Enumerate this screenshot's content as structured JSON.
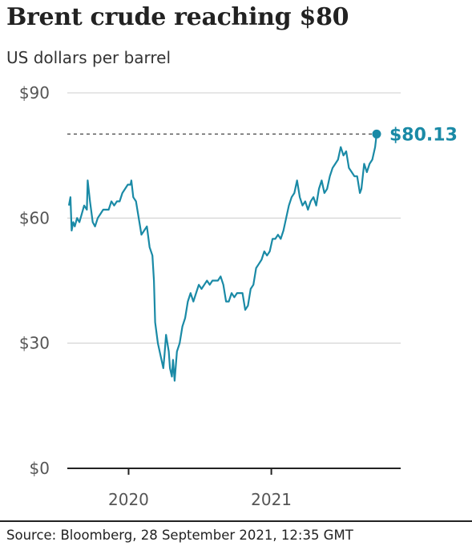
{
  "title": "Brent crude reaching $80",
  "subtitle": "US dollars per barrel",
  "source": "Source: Bloomberg, 28 September 2021, 12:35 GMT",
  "colors": {
    "line": "#1a8aa6",
    "grid": "#cccccc",
    "axis": "#222222",
    "tick_text": "#555555",
    "ref_line": "#333333"
  },
  "chart_data": {
    "type": "line",
    "title": "Brent crude reaching $80",
    "subtitle": "US dollars per barrel",
    "xlabel": "",
    "ylabel": "",
    "ylim": [
      0,
      90
    ],
    "xlim": [
      "2019-08-01",
      "2021-10-08"
    ],
    "y_ticks": [
      {
        "value": 90,
        "label": "$90"
      },
      {
        "value": 60,
        "label": "$60"
      },
      {
        "value": 30,
        "label": "$30"
      },
      {
        "value": 0,
        "label": "$0"
      }
    ],
    "x_ticks": [
      {
        "value": "2020-01-01",
        "label": "2020"
      },
      {
        "value": "2021-01-01",
        "label": "2021"
      }
    ],
    "grid": true,
    "reference_line": {
      "value": 80.13,
      "style": "dashed"
    },
    "end_label": "$80.13",
    "series": [
      {
        "x": [
          "2019-08-01",
          "2019-08-05",
          "2019-08-08",
          "2019-08-12",
          "2019-08-16",
          "2019-08-22",
          "2019-08-28",
          "2019-09-03",
          "2019-09-09",
          "2019-09-16",
          "2019-09-18",
          "2019-09-24",
          "2019-10-01",
          "2019-10-07",
          "2019-10-14",
          "2019-10-21",
          "2019-10-28",
          "2019-11-04",
          "2019-11-11",
          "2019-11-18",
          "2019-11-25",
          "2019-12-02",
          "2019-12-09",
          "2019-12-16",
          "2019-12-23",
          "2019-12-30",
          "2020-01-06",
          "2020-01-08",
          "2020-01-13",
          "2020-01-20",
          "2020-01-27",
          "2020-02-03",
          "2020-02-10",
          "2020-02-17",
          "2020-02-24",
          "2020-03-02",
          "2020-03-06",
          "2020-03-09",
          "2020-03-16",
          "2020-03-23",
          "2020-03-30",
          "2020-04-02",
          "2020-04-06",
          "2020-04-13",
          "2020-04-16",
          "2020-04-21",
          "2020-04-24",
          "2020-04-28",
          "2020-05-04",
          "2020-05-11",
          "2020-05-18",
          "2020-05-25",
          "2020-06-01",
          "2020-06-08",
          "2020-06-15",
          "2020-06-22",
          "2020-06-29",
          "2020-07-06",
          "2020-07-13",
          "2020-07-20",
          "2020-07-27",
          "2020-08-03",
          "2020-08-10",
          "2020-08-17",
          "2020-08-24",
          "2020-08-31",
          "2020-09-07",
          "2020-09-14",
          "2020-09-21",
          "2020-09-28",
          "2020-10-05",
          "2020-10-12",
          "2020-10-19",
          "2020-10-26",
          "2020-11-02",
          "2020-11-09",
          "2020-11-16",
          "2020-11-23",
          "2020-11-30",
          "2020-12-07",
          "2020-12-14",
          "2020-12-21",
          "2020-12-28",
          "2021-01-04",
          "2021-01-11",
          "2021-01-18",
          "2021-01-25",
          "2021-02-01",
          "2021-02-08",
          "2021-02-15",
          "2021-02-22",
          "2021-03-01",
          "2021-03-08",
          "2021-03-15",
          "2021-03-22",
          "2021-03-29",
          "2021-04-05",
          "2021-04-12",
          "2021-04-19",
          "2021-04-26",
          "2021-05-03",
          "2021-05-10",
          "2021-05-17",
          "2021-05-24",
          "2021-05-31",
          "2021-06-07",
          "2021-06-14",
          "2021-06-21",
          "2021-06-28",
          "2021-07-05",
          "2021-07-12",
          "2021-07-19",
          "2021-07-26",
          "2021-08-02",
          "2021-08-09",
          "2021-08-16",
          "2021-08-20",
          "2021-08-27",
          "2021-09-03",
          "2021-09-10",
          "2021-09-17",
          "2021-09-24",
          "2021-09-28"
        ],
        "values": [
          63,
          65,
          57,
          59,
          58,
          60,
          59,
          61,
          63,
          62,
          69,
          64,
          59,
          58,
          60,
          61,
          62,
          62,
          62,
          64,
          63,
          64,
          64,
          66,
          67,
          68,
          68,
          69,
          65,
          64,
          60,
          56,
          57,
          58,
          53,
          51,
          45,
          35,
          30,
          27,
          24,
          27,
          32,
          28,
          24,
          22,
          26,
          21,
          28,
          30,
          34,
          36,
          40,
          42,
          40,
          42,
          44,
          43,
          44,
          45,
          44,
          45,
          45,
          45,
          46,
          44,
          40,
          40,
          42,
          41,
          42,
          42,
          42,
          38,
          39,
          43,
          44,
          48,
          49,
          50,
          52,
          51,
          52,
          55,
          55,
          56,
          55,
          57,
          60,
          63,
          65,
          66,
          69,
          65,
          63,
          64,
          62,
          64,
          65,
          63,
          67,
          69,
          66,
          67,
          70,
          72,
          73,
          74,
          77,
          75,
          76,
          72,
          71,
          70,
          70,
          66,
          67,
          73,
          71,
          73,
          74,
          77,
          80.13
        ]
      }
    ]
  }
}
